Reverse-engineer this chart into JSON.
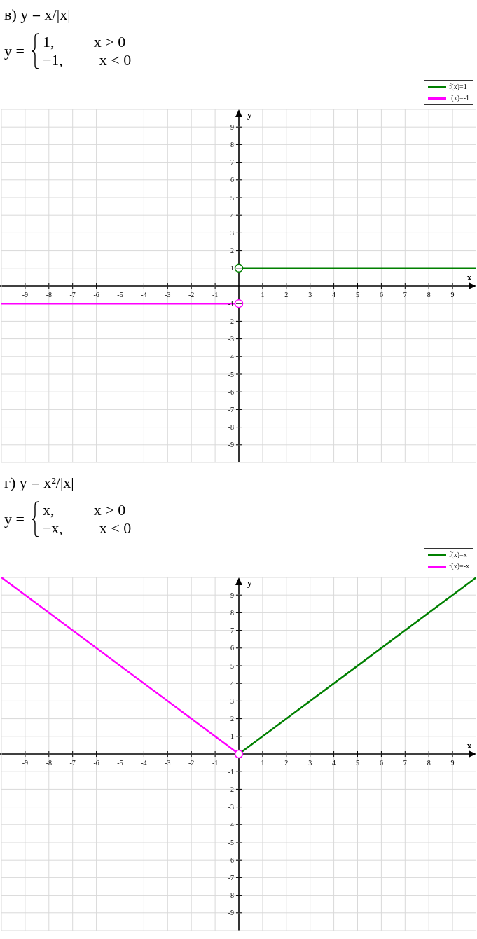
{
  "chart_data": [
    {
      "type": "line",
      "title": "в) y = x/|x|",
      "subtitle": "y =",
      "annotations": [
        "1, x > 0",
        "−1, x < 0"
      ],
      "xlabel": "x",
      "ylabel": "y",
      "xlim": [
        -10,
        10
      ],
      "ylim": [
        -10,
        10
      ],
      "xticks": [
        -9,
        -8,
        -7,
        -6,
        -5,
        -4,
        -3,
        -2,
        -1,
        1,
        2,
        3,
        4,
        5,
        6,
        7,
        8,
        9
      ],
      "yticks": [
        -9,
        -8,
        -7,
        -6,
        -5,
        -4,
        -3,
        -2,
        -1,
        1,
        2,
        3,
        4,
        5,
        6,
        7,
        8,
        9
      ],
      "grid": true,
      "legend": "top right",
      "series": [
        {
          "name": "f(x)=1",
          "color": "#008000",
          "x": [
            0,
            10
          ],
          "values": [
            1,
            1
          ]
        },
        {
          "name": "f(x)=-1",
          "color": "#ff00ff",
          "x": [
            -10,
            0
          ],
          "values": [
            -1,
            -1
          ]
        },
        {
          "type": "scatter",
          "color": "#008000",
          "x": [
            0
          ],
          "values": [
            1
          ],
          "marker": "circle"
        },
        {
          "type": "scatter",
          "color": "#ff00ff",
          "x": [
            0
          ],
          "values": [
            -1
          ],
          "marker": "circle"
        }
      ]
    },
    {
      "type": "line",
      "title": "г) y = x²/|x|",
      "subtitle": "y =",
      "annotations": [
        "x, x > 0",
        "−x, x < 0"
      ],
      "xlabel": "x",
      "ylabel": "y",
      "xlim": [
        -10,
        10
      ],
      "ylim": [
        -10,
        10
      ],
      "xticks": [
        -9,
        -8,
        -7,
        -6,
        -5,
        -4,
        -3,
        -2,
        -1,
        1,
        2,
        3,
        4,
        5,
        6,
        7,
        8,
        9
      ],
      "yticks": [
        -9,
        -8,
        -7,
        -6,
        -5,
        -4,
        -3,
        -2,
        -1,
        1,
        2,
        3,
        4,
        5,
        6,
        7,
        8,
        9
      ],
      "grid": true,
      "legend": "top right",
      "series": [
        {
          "name": "f(x)=x",
          "color": "#008000",
          "x": [
            0,
            10
          ],
          "values": [
            0,
            10
          ]
        },
        {
          "name": "f(x)=-x",
          "color": "#ff00ff",
          "x": [
            -10,
            0
          ],
          "values": [
            10,
            0
          ]
        },
        {
          "type": "scatter",
          "color": "#ff00ff",
          "x": [
            0
          ],
          "values": [
            0
          ],
          "marker": "circle"
        }
      ]
    }
  ]
}
